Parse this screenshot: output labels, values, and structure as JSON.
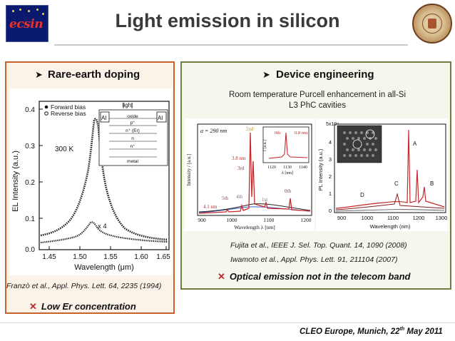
{
  "header": {
    "title": "Light emission in silicon",
    "logo_text": "ecsin"
  },
  "left_panel": {
    "heading": "Rare-earth doping",
    "plot": {
      "temperature": "300 K",
      "legend_forward": "Forward bias",
      "legend_reverse": "Reverse bias",
      "inset_light": "light",
      "inset_al": "Al",
      "inset_layers": [
        "oxide",
        "p⁺",
        "n⁺ (Er)",
        "n",
        "n⁺",
        "metal"
      ],
      "multiplier_label": "x 4",
      "ylabel": "EL Intensity (a.u.)",
      "xlabel": "Wavelength (μm)",
      "yticks": [
        "0.4",
        "0.3",
        "0.2",
        "0.1",
        "0.0"
      ],
      "xticks": [
        "1.45",
        "1.50",
        "1.55",
        "1.60",
        "1.65"
      ]
    },
    "reference": "Franzò et al., Appl. Phys. Lett. 64, 2235 (1994)",
    "drawback": "Low Er concentration"
  },
  "right_panel": {
    "heading": "Device engineering",
    "caption": "Room temperature Purcell enhancement in all-Si L3 PhC cavities",
    "plot1": {
      "lattice": "a = 290 nm",
      "ylabel": "Intensity / [a.u.]",
      "xlabel": "Wavelength λ [nm]",
      "xticks": [
        "900",
        "1000",
        "1100",
        "1200"
      ],
      "labels": [
        "2nd",
        "3.8 nm",
        "3rd",
        "5th",
        "4th",
        "1st",
        "0th",
        "4.1 nm"
      ],
      "inset_label_0th": "0th",
      "inset_label_width": "0.8 nm",
      "inset_ylabel": "I [a.u.]",
      "inset_xlabel": "λ [nm]",
      "inset_xticks": [
        "1120",
        "1130",
        "1140"
      ]
    },
    "plot2": {
      "ylabel": "PL Intensity (a.u.)",
      "xlabel": "Wavelength (nm)",
      "yscale": "5x10⁴",
      "yticks": [
        "4",
        "3",
        "2",
        "1",
        "0"
      ],
      "xticks": [
        "900",
        "1000",
        "1100",
        "1200",
        "1300"
      ],
      "peaks": [
        "A",
        "B",
        "C",
        "D"
      ]
    },
    "references": [
      "Fujita et al., IEEE J. Sel. Top. Quant. 14, 1090 (2008)",
      "Iwamoto et al., Appl. Phys. Lett. 91, 211104 (2007)"
    ],
    "drawback": "Optical emission not in the telecom band"
  },
  "footer": {
    "event": "CLEO Europe, Munich, 22",
    "sup": "th",
    "date_rest": " May 2011"
  },
  "colors": {
    "left_border": "#c9632a",
    "right_border": "#6e7e3e",
    "cross": "#c0282a"
  }
}
